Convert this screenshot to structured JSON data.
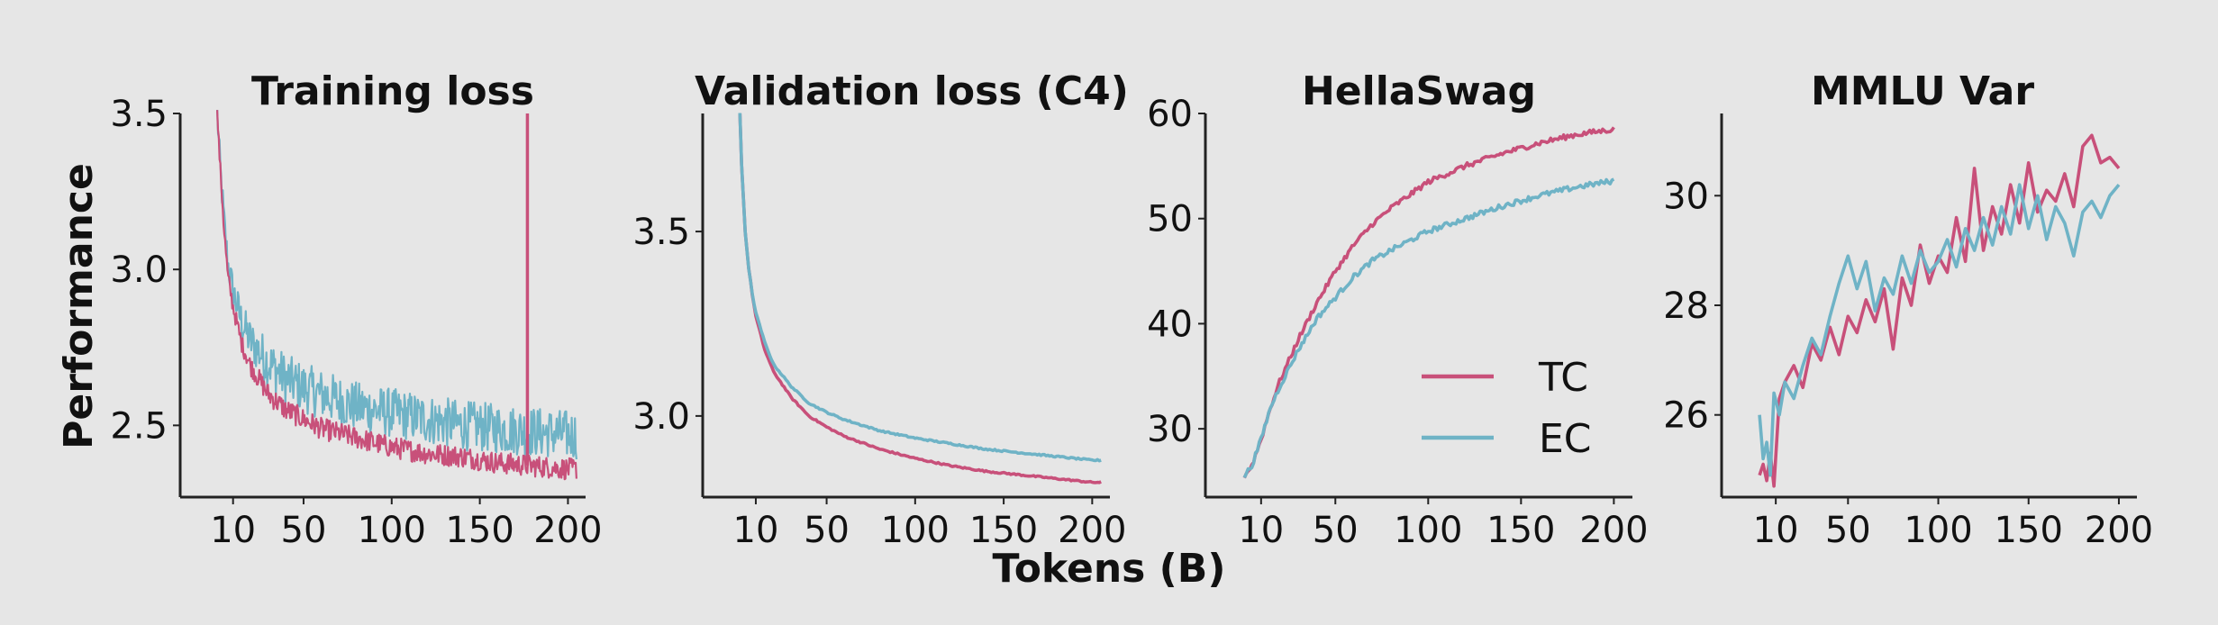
{
  "figure": {
    "xlabel": "Tokens (B)",
    "ylabel": "Performance"
  },
  "colors": {
    "TC": "#c8507a",
    "EC": "#6fb3c6"
  },
  "legend": {
    "placement": "lower-right",
    "panel": 2,
    "entries": [
      {
        "label": "TC",
        "color": "#c8507a"
      },
      {
        "label": "EC",
        "color": "#6fb3c6"
      }
    ]
  },
  "chart_data": [
    {
      "type": "line",
      "title": "Training loss",
      "xlim": [
        -20,
        210
      ],
      "ylim": [
        2.27,
        3.5
      ],
      "xticks": [
        10,
        50,
        100,
        150,
        200
      ],
      "yticks": [
        2.5,
        3.0,
        3.5
      ],
      "yticklabels": [
        "2.5",
        "3.0",
        "3.5"
      ],
      "noisy": true,
      "spike": {
        "series": "TC",
        "x": 177,
        "y": 3.5
      },
      "series": [
        {
          "name": "TC",
          "x": [
            1,
            3,
            5,
            7,
            10,
            15,
            20,
            30,
            40,
            50,
            60,
            80,
            100,
            120,
            140,
            160,
            180,
            200,
            205
          ],
          "y": [
            3.5,
            3.3,
            3.12,
            2.98,
            2.88,
            2.76,
            2.69,
            2.6,
            2.55,
            2.52,
            2.49,
            2.46,
            2.43,
            2.41,
            2.4,
            2.38,
            2.37,
            2.36,
            2.36
          ],
          "noise": 0.035
        },
        {
          "name": "EC",
          "x": [
            1,
            3,
            5,
            7,
            10,
            15,
            20,
            30,
            40,
            50,
            60,
            80,
            100,
            120,
            140,
            160,
            180,
            200,
            205
          ],
          "y": [
            3.5,
            3.3,
            3.15,
            3.02,
            2.93,
            2.83,
            2.77,
            2.7,
            2.65,
            2.62,
            2.6,
            2.56,
            2.54,
            2.52,
            2.5,
            2.49,
            2.48,
            2.47,
            2.47
          ],
          "noise": 0.08
        }
      ]
    },
    {
      "type": "line",
      "title": "Validation loss (C4)",
      "xlim": [
        -20,
        210
      ],
      "ylim": [
        2.78,
        3.82
      ],
      "xticks": [
        10,
        50,
        100,
        150,
        200
      ],
      "yticks": [
        3.0,
        3.5
      ],
      "yticklabels": [
        "3.0",
        "3.5"
      ],
      "series": [
        {
          "name": "TC",
          "x": [
            1,
            2,
            4,
            6,
            8,
            10,
            15,
            20,
            30,
            40,
            50,
            60,
            80,
            100,
            120,
            140,
            160,
            180,
            200,
            205
          ],
          "y": [
            3.82,
            3.68,
            3.5,
            3.4,
            3.33,
            3.27,
            3.18,
            3.12,
            3.05,
            3.0,
            2.97,
            2.945,
            2.91,
            2.885,
            2.865,
            2.85,
            2.84,
            2.83,
            2.82,
            2.82
          ],
          "noise": 0.002
        },
        {
          "name": "EC",
          "x": [
            1,
            2,
            4,
            6,
            8,
            10,
            15,
            20,
            30,
            40,
            50,
            60,
            80,
            100,
            120,
            140,
            160,
            180,
            200,
            205
          ],
          "y": [
            3.82,
            3.68,
            3.5,
            3.4,
            3.33,
            3.28,
            3.2,
            3.14,
            3.08,
            3.035,
            3.01,
            2.99,
            2.96,
            2.94,
            2.925,
            2.91,
            2.9,
            2.89,
            2.88,
            2.88
          ],
          "noise": 0.002
        }
      ]
    },
    {
      "type": "line",
      "title": "HellaSwag",
      "xlim": [
        -20,
        210
      ],
      "ylim": [
        23.5,
        60
      ],
      "xticks": [
        10,
        50,
        100,
        150,
        200
      ],
      "yticks": [
        30,
        40,
        50,
        60
      ],
      "yticklabels": [
        "30",
        "40",
        "50",
        "60"
      ],
      "series": [
        {
          "name": "TC",
          "x": [
            1,
            5,
            10,
            15,
            20,
            30,
            40,
            50,
            60,
            70,
            80,
            100,
            120,
            140,
            160,
            180,
            200
          ],
          "y": [
            25.5,
            26.5,
            29,
            32,
            34.5,
            38.5,
            42,
            45,
            47.5,
            49.5,
            51,
            53.5,
            55,
            56.2,
            57.2,
            58,
            58.5
          ],
          "noise": 0.25
        },
        {
          "name": "EC",
          "x": [
            1,
            5,
            10,
            15,
            20,
            30,
            40,
            50,
            60,
            70,
            80,
            100,
            120,
            140,
            160,
            180,
            200
          ],
          "y": [
            25.5,
            26.5,
            29,
            32,
            34,
            37.5,
            40.5,
            42.5,
            44.5,
            46,
            47,
            48.8,
            50,
            51.2,
            52.2,
            53,
            53.6
          ],
          "noise": 0.25
        }
      ]
    },
    {
      "type": "line",
      "title": "MMLU Var",
      "xlim": [
        -20,
        210
      ],
      "ylim": [
        24.5,
        31.5
      ],
      "xticks": [
        10,
        50,
        100,
        150,
        200
      ],
      "yticks": [
        26,
        28,
        30
      ],
      "yticklabels": [
        "26",
        "28",
        "30"
      ],
      "series": [
        {
          "name": "TC",
          "x": [
            1,
            3,
            5,
            7,
            9,
            12,
            15,
            20,
            25,
            30,
            35,
            40,
            45,
            50,
            55,
            60,
            65,
            70,
            75,
            80,
            85,
            90,
            95,
            100,
            105,
            110,
            115,
            120,
            125,
            130,
            135,
            140,
            145,
            150,
            155,
            160,
            165,
            170,
            175,
            180,
            185,
            190,
            195,
            200
          ],
          "y": [
            24.9,
            25.1,
            24.8,
            25.3,
            24.7,
            26.3,
            26.6,
            26.9,
            26.5,
            27.3,
            27.0,
            27.6,
            27.1,
            27.8,
            27.5,
            28.1,
            27.7,
            28.3,
            27.2,
            28.5,
            28.0,
            29.1,
            28.4,
            28.9,
            28.6,
            29.6,
            28.8,
            30.5,
            29.0,
            29.8,
            29.3,
            30.2,
            29.5,
            30.6,
            29.7,
            30.1,
            29.9,
            30.4,
            29.8,
            30.9,
            31.1,
            30.6,
            30.7,
            30.5
          ],
          "noise": 0
        },
        {
          "name": "EC",
          "x": [
            1,
            3,
            5,
            7,
            9,
            12,
            15,
            20,
            25,
            30,
            35,
            40,
            45,
            50,
            55,
            60,
            65,
            70,
            75,
            80,
            85,
            90,
            95,
            100,
            105,
            110,
            115,
            120,
            125,
            130,
            135,
            140,
            145,
            150,
            155,
            160,
            165,
            170,
            175,
            180,
            185,
            190,
            195,
            200
          ],
          "y": [
            26.0,
            25.2,
            25.5,
            24.9,
            26.4,
            26.0,
            26.6,
            26.3,
            26.9,
            27.4,
            27.1,
            27.8,
            28.4,
            28.9,
            28.3,
            28.8,
            27.9,
            28.5,
            28.2,
            28.9,
            28.4,
            29.0,
            28.6,
            28.8,
            29.2,
            28.7,
            29.4,
            29.0,
            29.6,
            29.1,
            29.8,
            29.3,
            30.2,
            29.4,
            30.0,
            29.2,
            29.8,
            29.5,
            28.9,
            29.7,
            29.9,
            29.6,
            30.0,
            30.2
          ],
          "noise": 0
        }
      ]
    }
  ]
}
